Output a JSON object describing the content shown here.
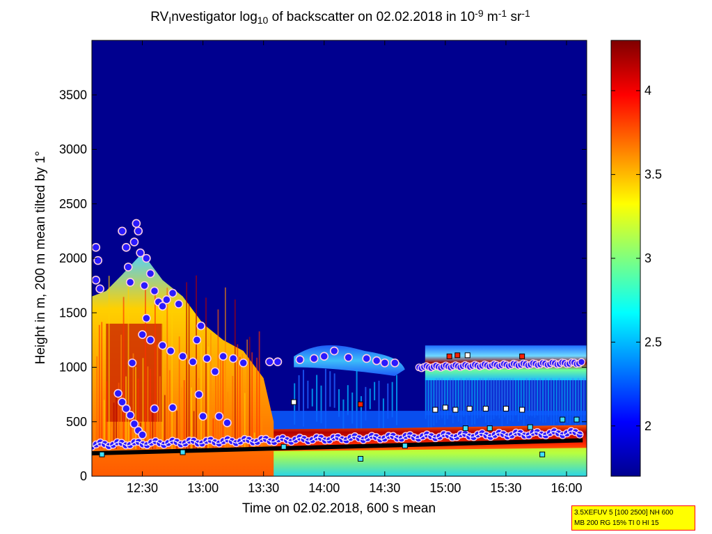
{
  "title": {
    "t1": "RV",
    "t1_sub": "I",
    "t2": "nvestigator log",
    "t2_sub": "10",
    "t3": " of backscatter on 02.02.2018 in 10",
    "t3_sup": "-9",
    "t4": " m",
    "t4_sup": "-1",
    "t5": " sr",
    "t5_sup": "-1"
  },
  "chart_data": {
    "type": "heatmap",
    "xlabel": "Time on 02.02.2018, 600 s mean",
    "ylabel": "Height in m, 200 m mean tilted by 1°",
    "xlim": [
      "12:05",
      "16:10"
    ],
    "ylim": [
      0,
      4000
    ],
    "x_ticks": [
      "12:30",
      "13:00",
      "13:30",
      "14:00",
      "14:30",
      "15:00",
      "15:30",
      "16:00"
    ],
    "y_ticks": [
      0,
      500,
      1000,
      1500,
      2000,
      2500,
      3000,
      3500
    ],
    "colorbar": {
      "range": [
        1.7,
        4.3
      ],
      "ticks": [
        2,
        2.5,
        3,
        3.5,
        4
      ],
      "colormap": "jet"
    },
    "background_color": "#00008f",
    "layers": [
      {
        "name": "boundary layer (high backscatter)",
        "x": [
          "12:05",
          "16:10"
        ],
        "y": [
          0,
          400
        ],
        "level": 4.0
      },
      {
        "name": "convective plumes",
        "x": [
          "12:05",
          "13:30"
        ],
        "y": [
          0,
          1700
        ],
        "level": 3.7
      },
      {
        "name": "elevated aerosol layer",
        "x": [
          "13:45",
          "14:40"
        ],
        "y": [
          950,
          1200
        ],
        "level": 2.6
      },
      {
        "name": "cloud layer",
        "x": [
          "14:50",
          "16:10"
        ],
        "y": [
          900,
          1200
        ],
        "level": 3.3
      }
    ],
    "markers": {
      "cloud_base_circles_upper": [
        {
          "x": "12:07",
          "y": 2100
        },
        {
          "x": "12:08",
          "y": 1980
        },
        {
          "x": "12:07",
          "y": 1800
        },
        {
          "x": "12:09",
          "y": 1720
        },
        {
          "x": "12:20",
          "y": 2250
        },
        {
          "x": "12:22",
          "y": 2100
        },
        {
          "x": "12:23",
          "y": 1920
        },
        {
          "x": "12:27",
          "y": 2320
        },
        {
          "x": "12:28",
          "y": 2250
        },
        {
          "x": "12:26",
          "y": 2150
        },
        {
          "x": "12:29",
          "y": 2050
        },
        {
          "x": "12:24",
          "y": 1780
        },
        {
          "x": "12:31",
          "y": 1750
        },
        {
          "x": "12:32",
          "y": 2000
        },
        {
          "x": "12:34",
          "y": 1860
        },
        {
          "x": "12:36",
          "y": 1700
        },
        {
          "x": "12:38",
          "y": 1600
        },
        {
          "x": "12:40",
          "y": 1560
        },
        {
          "x": "12:42",
          "y": 1620
        },
        {
          "x": "12:45",
          "y": 1680
        },
        {
          "x": "12:48",
          "y": 1580
        },
        {
          "x": "12:32",
          "y": 1450
        },
        {
          "x": "12:30",
          "y": 1300
        },
        {
          "x": "12:34",
          "y": 1250
        },
        {
          "x": "12:40",
          "y": 1200
        },
        {
          "x": "12:44",
          "y": 1150
        },
        {
          "x": "12:50",
          "y": 1100
        },
        {
          "x": "12:55",
          "y": 1050
        },
        {
          "x": "12:57",
          "y": 1250
        },
        {
          "x": "12:59",
          "y": 1380
        },
        {
          "x": "13:02",
          "y": 1080
        },
        {
          "x": "13:06",
          "y": 960
        },
        {
          "x": "13:10",
          "y": 1100
        },
        {
          "x": "13:15",
          "y": 1080
        },
        {
          "x": "13:20",
          "y": 1040
        },
        {
          "x": "12:25",
          "y": 1040
        }
      ],
      "cloud_base_circles_lower": [
        {
          "x": "12:18",
          "y": 760
        },
        {
          "x": "12:20",
          "y": 680
        },
        {
          "x": "12:22",
          "y": 620
        },
        {
          "x": "12:24",
          "y": 560
        },
        {
          "x": "12:26",
          "y": 480
        },
        {
          "x": "12:28",
          "y": 420
        },
        {
          "x": "12:30",
          "y": 380
        },
        {
          "x": "12:36",
          "y": 620
        },
        {
          "x": "12:45",
          "y": 630
        },
        {
          "x": "12:58",
          "y": 750
        },
        {
          "x": "13:00",
          "y": 550
        },
        {
          "x": "13:08",
          "y": 550
        },
        {
          "x": "13:12",
          "y": 490
        }
      ],
      "elevated_layer_circles": [
        {
          "x": "13:33",
          "y": 1050
        },
        {
          "x": "13:37",
          "y": 1050
        },
        {
          "x": "13:48",
          "y": 1070
        },
        {
          "x": "13:55",
          "y": 1080
        },
        {
          "x": "14:00",
          "y": 1100
        },
        {
          "x": "14:05",
          "y": 1150
        },
        {
          "x": "14:12",
          "y": 1090
        },
        {
          "x": "14:21",
          "y": 1080
        },
        {
          "x": "14:26",
          "y": 1060
        },
        {
          "x": "14:30",
          "y": 1040
        },
        {
          "x": "14:35",
          "y": 1040
        }
      ],
      "cloud_layer_line": {
        "x": [
          "14:47",
          "16:08"
        ],
        "y": [
          1000,
          1040
        ]
      },
      "boundary_layer_line": {
        "x": [
          "12:05",
          "16:08"
        ],
        "y": [
          290,
          400
        ]
      },
      "mixing_height_line": {
        "x": [
          "12:05",
          "16:08"
        ],
        "y": [
          210,
          330
        ]
      },
      "square_markers": [
        {
          "x": "13:45",
          "y": 680,
          "color": "#ffffff"
        },
        {
          "x": "14:18",
          "y": 660,
          "color": "#ff2000"
        },
        {
          "x": "14:18",
          "y": 160,
          "color": "#40e0ff"
        },
        {
          "x": "14:55",
          "y": 610,
          "color": "#ffffff"
        },
        {
          "x": "15:00",
          "y": 630,
          "color": "#ffffff"
        },
        {
          "x": "15:05",
          "y": 610,
          "color": "#ffffff"
        },
        {
          "x": "15:12",
          "y": 620,
          "color": "#ffffff"
        },
        {
          "x": "15:20",
          "y": 620,
          "color": "#ffffff"
        },
        {
          "x": "15:30",
          "y": 620,
          "color": "#ffffff"
        },
        {
          "x": "15:38",
          "y": 610,
          "color": "#ffffff"
        },
        {
          "x": "15:02",
          "y": 1100,
          "color": "#ff2000"
        },
        {
          "x": "15:06",
          "y": 1110,
          "color": "#ff2000"
        },
        {
          "x": "15:11",
          "y": 1110,
          "color": "#ffffff"
        },
        {
          "x": "15:38",
          "y": 1100,
          "color": "#ff2000"
        },
        {
          "x": "15:58",
          "y": 520,
          "color": "#40e0ff"
        },
        {
          "x": "16:05",
          "y": 520,
          "color": "#40e0ff"
        },
        {
          "x": "15:48",
          "y": 200,
          "color": "#40e0ff"
        },
        {
          "x": "15:10",
          "y": 440,
          "color": "#40e0ff"
        },
        {
          "x": "15:22",
          "y": 440,
          "color": "#40e0ff"
        },
        {
          "x": "15:42",
          "y": 450,
          "color": "#40e0ff"
        },
        {
          "x": "12:10",
          "y": 200,
          "color": "#40e0ff"
        },
        {
          "x": "12:50",
          "y": 220,
          "color": "#40e0ff"
        },
        {
          "x": "13:40",
          "y": 270,
          "color": "#40e0ff"
        },
        {
          "x": "14:40",
          "y": 280,
          "color": "#40e0ff"
        }
      ]
    }
  },
  "info_box": {
    "line1": "3.5XEFUV 5 [100 2500] NH 600",
    "line2": "MB 200 RG 15% TI 0 HI 15"
  }
}
